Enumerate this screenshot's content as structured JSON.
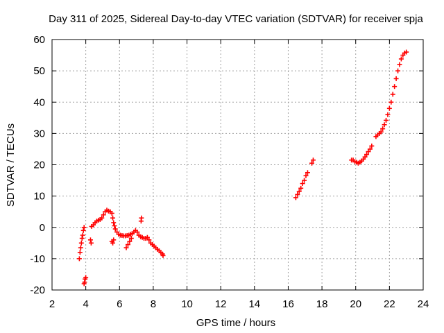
{
  "chart_data": {
    "type": "scatter",
    "title": "Day 311 of 2025, Sidereal Day-to-day VTEC variation (SDTVAR) for receiver spja",
    "xlabel": "GPS time / hours",
    "ylabel": "SDTVAR / TECUs",
    "xlim": [
      2,
      24
    ],
    "ylim": [
      -20,
      60
    ],
    "xticks": [
      "2",
      "4",
      "6",
      "8",
      "10",
      "12",
      "14",
      "16",
      "18",
      "20",
      "22",
      "24"
    ],
    "yticks": [
      "-20",
      "-10",
      "0",
      "10",
      "20",
      "30",
      "40",
      "50",
      "60"
    ],
    "grid": true,
    "marker": "+",
    "color": "#ff0000",
    "series": [
      {
        "name": "SDTVAR",
        "points": [
          [
            3.62,
            -10
          ],
          [
            3.66,
            -8
          ],
          [
            3.7,
            -6.5
          ],
          [
            3.74,
            -5
          ],
          [
            3.78,
            -3.5
          ],
          [
            3.82,
            -2.5
          ],
          [
            3.86,
            -1
          ],
          [
            3.9,
            0
          ],
          [
            3.9,
            -18
          ],
          [
            3.93,
            -17.5
          ],
          [
            3.96,
            -16.5
          ],
          [
            4.0,
            -16
          ],
          [
            4.28,
            -4
          ],
          [
            4.32,
            -5
          ],
          [
            4.35,
            0.3
          ],
          [
            4.45,
            0.8
          ],
          [
            4.55,
            1.5
          ],
          [
            4.65,
            2
          ],
          [
            4.75,
            2.3
          ],
          [
            4.85,
            2.5
          ],
          [
            4.95,
            3
          ],
          [
            5.05,
            4
          ],
          [
            5.15,
            5
          ],
          [
            5.25,
            5.5
          ],
          [
            5.35,
            5.2
          ],
          [
            5.45,
            5
          ],
          [
            5.55,
            4.5
          ],
          [
            5.6,
            3
          ],
          [
            5.65,
            1.5
          ],
          [
            5.7,
            0.5
          ],
          [
            5.55,
            -4.5
          ],
          [
            5.6,
            -5
          ],
          [
            5.65,
            -4
          ],
          [
            5.75,
            -0.5
          ],
          [
            5.85,
            -1.5
          ],
          [
            5.95,
            -2.2
          ],
          [
            6.05,
            -2.5
          ],
          [
            6.15,
            -2.6
          ],
          [
            6.25,
            -2.7
          ],
          [
            6.35,
            -2.7
          ],
          [
            6.45,
            -2.6
          ],
          [
            6.55,
            -2.5
          ],
          [
            6.65,
            -2.2
          ],
          [
            6.75,
            -2
          ],
          [
            6.85,
            -1.5
          ],
          [
            6.95,
            -1
          ],
          [
            7.05,
            -1.5
          ],
          [
            7.15,
            -2.5
          ],
          [
            7.25,
            -3
          ],
          [
            7.35,
            -3.2
          ],
          [
            7.45,
            -3.5
          ],
          [
            7.55,
            -3.5
          ],
          [
            7.65,
            -3.2
          ],
          [
            7.75,
            -4
          ],
          [
            7.85,
            -5
          ],
          [
            7.95,
            -5.5
          ],
          [
            8.05,
            -6
          ],
          [
            8.15,
            -6.5
          ],
          [
            8.25,
            -7
          ],
          [
            8.35,
            -7.5
          ],
          [
            8.45,
            -8
          ],
          [
            8.55,
            -8.5
          ],
          [
            8.58,
            -9
          ],
          [
            6.4,
            -6.5
          ],
          [
            6.5,
            -5.5
          ],
          [
            6.6,
            -4.5
          ],
          [
            6.7,
            -3.5
          ],
          [
            7.28,
            2
          ],
          [
            7.3,
            3
          ],
          [
            16.45,
            9.5
          ],
          [
            16.55,
            10.5
          ],
          [
            16.65,
            11.5
          ],
          [
            16.75,
            12.5
          ],
          [
            16.85,
            14
          ],
          [
            16.95,
            15
          ],
          [
            17.05,
            16.5
          ],
          [
            17.15,
            17.5
          ],
          [
            17.4,
            20.5
          ],
          [
            17.48,
            21.5
          ],
          [
            19.75,
            21.5
          ],
          [
            19.85,
            21.5
          ],
          [
            19.95,
            21
          ],
          [
            20.05,
            20.8
          ],
          [
            20.15,
            20.5
          ],
          [
            20.25,
            20.8
          ],
          [
            20.35,
            21.2
          ],
          [
            20.45,
            21.8
          ],
          [
            20.55,
            22.5
          ],
          [
            20.65,
            23.3
          ],
          [
            20.75,
            24.2
          ],
          [
            20.85,
            25
          ],
          [
            20.95,
            26
          ],
          [
            21.2,
            29
          ],
          [
            21.3,
            29.5
          ],
          [
            21.4,
            30
          ],
          [
            21.5,
            30.5
          ],
          [
            21.6,
            31.5
          ],
          [
            21.7,
            32.8
          ],
          [
            21.8,
            34.2
          ],
          [
            21.9,
            36
          ],
          [
            22.0,
            38
          ],
          [
            22.1,
            40
          ],
          [
            22.2,
            42.5
          ],
          [
            22.3,
            45
          ],
          [
            22.4,
            47.5
          ],
          [
            22.5,
            50
          ],
          [
            22.6,
            52
          ],
          [
            22.7,
            53.8
          ],
          [
            22.8,
            55
          ],
          [
            22.9,
            55.7
          ],
          [
            23.0,
            56
          ]
        ]
      }
    ]
  }
}
